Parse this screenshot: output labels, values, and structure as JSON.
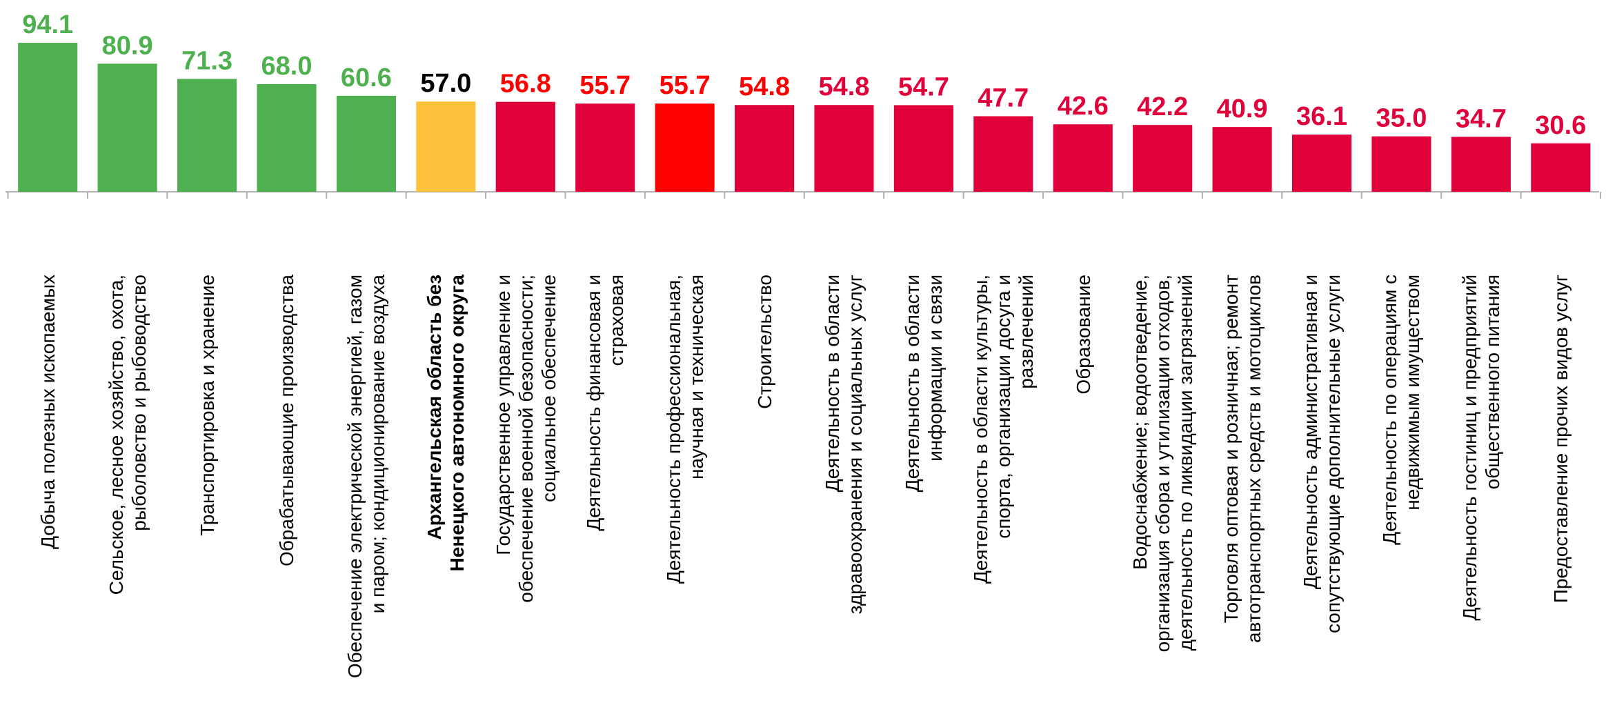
{
  "chart_data": {
    "type": "bar",
    "categories": [
      "Добыча полезных ископаемых",
      "Сельское, лесное хозяйство, охота,\nрыболовство и рыбоводство",
      "Транспортировка и хранение",
      "Обрабатывающие производства",
      "Обеспечение электрической энергией, газом\nи паром; кондиционирование воздуха",
      "Архангельская область без\nНенецкого автономного округа",
      "Государственное управление и\nобеспечение военной безопасности;\nсоциальное обеспечение",
      "Деятельность финансовая и\nстраховая",
      "Деятельность профессиональная,\nнаучная и техническая",
      "Строительство",
      "Деятельность в области\nздравоохранения и социальных услуг",
      "Деятельность в области\nинформации и связи",
      "Деятельность в области культуры,\nспорта, организации досуга и\nразвлечений",
      "Образование",
      "Водоснабжение; водоотведение,\nорганизация сбора и утилизации отходов,\nдеятельность по ликвидации загрязнений",
      "Торговля оптовая и розничная; ремонт\nавтотранспортных средств и мотоциклов",
      "Деятельность административная и\nсопутствующие дополнительные услуги",
      "Деятельность по операциям с\nнедвижимым имуществом",
      "Деятельность гостиниц и предприятий\nобщественного питания",
      "Предоставление прочих видов услуг"
    ],
    "values": [
      94.1,
      80.9,
      71.3,
      68.0,
      60.6,
      57.0,
      56.8,
      55.7,
      55.7,
      54.8,
      54.8,
      54.7,
      47.7,
      42.6,
      42.2,
      40.9,
      36.1,
      35.0,
      34.7,
      30.6
    ],
    "value_labels": [
      "94.1",
      "80.9",
      "71.3",
      "68.0",
      "60.6",
      "57.0",
      "56.8",
      "55.7",
      "55.7",
      "54.8",
      "54.8",
      "54.7",
      "47.7",
      "42.6",
      "42.2",
      "40.9",
      "36.1",
      "35.0",
      "34.7",
      "30.6"
    ],
    "colors": [
      "#4fb04f",
      "#4fb04f",
      "#4fb04f",
      "#4fb04f",
      "#4fb04f",
      "#fcc23b",
      "#e0003a",
      "#e0003a",
      "#ff0000",
      "#e0003a",
      "#e0003a",
      "#e0003a",
      "#e0003a",
      "#e0003a",
      "#e0003a",
      "#e0003a",
      "#e0003a",
      "#e0003a",
      "#e0003a",
      "#e0003a"
    ],
    "label_colors": [
      "#4fb04f",
      "#4fb04f",
      "#4fb04f",
      "#4fb04f",
      "#4fb04f",
      "#000000",
      "#ff0000",
      "#ff0000",
      "#ff0000",
      "#ff0000",
      "#e0003a",
      "#e0003a",
      "#e0003a",
      "#e0003a",
      "#e0003a",
      "#e0003a",
      "#e0003a",
      "#e0003a",
      "#e0003a",
      "#e0003a"
    ],
    "bold_categories": [
      5
    ],
    "ylim": [
      0,
      100
    ]
  }
}
